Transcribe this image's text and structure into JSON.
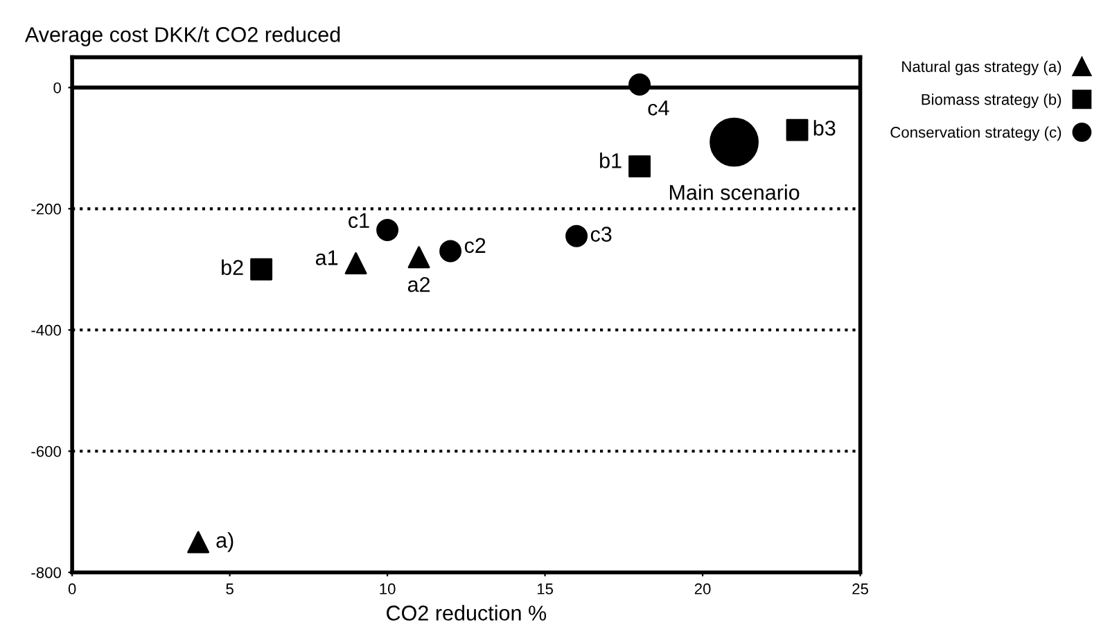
{
  "chart_data": {
    "type": "scatter",
    "ylabel": "Average cost DKK/t CO2 reduced",
    "xlabel": "CO2 reduction %",
    "xlim": [
      0,
      25
    ],
    "xticks": [
      0,
      5,
      10,
      15,
      20,
      25
    ],
    "ylim": [
      -800,
      50
    ],
    "yticks": [
      -800,
      -600,
      -400,
      -200,
      0
    ],
    "grid": "y",
    "legend": "right",
    "series": [
      {
        "name": "Natural gas strategy (a)",
        "color": "#000000",
        "marker": "triangle",
        "x": [
          4,
          9,
          11
        ],
        "values": [
          -750,
          -290,
          -280
        ]
      },
      {
        "name": "Biomass strategy (b)",
        "color": "#000000",
        "marker": "square",
        "x": [
          18,
          6,
          23
        ],
        "values": [
          -130,
          -300,
          -70
        ]
      },
      {
        "name": "Conservation strategy (c)",
        "color": "#000000",
        "marker": "circle",
        "x": [
          10,
          12,
          16,
          18
        ],
        "values": [
          -235,
          -270,
          -245,
          5
        ]
      },
      {
        "name": "Main scenario",
        "color": "#000000",
        "marker": "circle",
        "x": [
          21
        ],
        "values": [
          -90
        ]
      }
    ],
    "ref_lines": [
      {
        "axis": "y",
        "value": 0,
        "color": "#000000",
        "line_style": "solid"
      }
    ],
    "annotations": [
      {
        "text": "a)",
        "x": 4,
        "y": -750
      },
      {
        "text": "a1",
        "x": 9,
        "y": -290
      },
      {
        "text": "a2",
        "x": 11,
        "y": -280
      },
      {
        "text": "b1",
        "x": 18,
        "y": -130
      },
      {
        "text": "b2",
        "x": 6,
        "y": -300
      },
      {
        "text": "b3",
        "x": 23,
        "y": -70
      },
      {
        "text": "c1",
        "x": 10,
        "y": -235
      },
      {
        "text": "c2",
        "x": 12,
        "y": -270
      },
      {
        "text": "c3",
        "x": 16,
        "y": -245
      },
      {
        "text": "c4",
        "x": 18,
        "y": 5
      }
    ]
  }
}
